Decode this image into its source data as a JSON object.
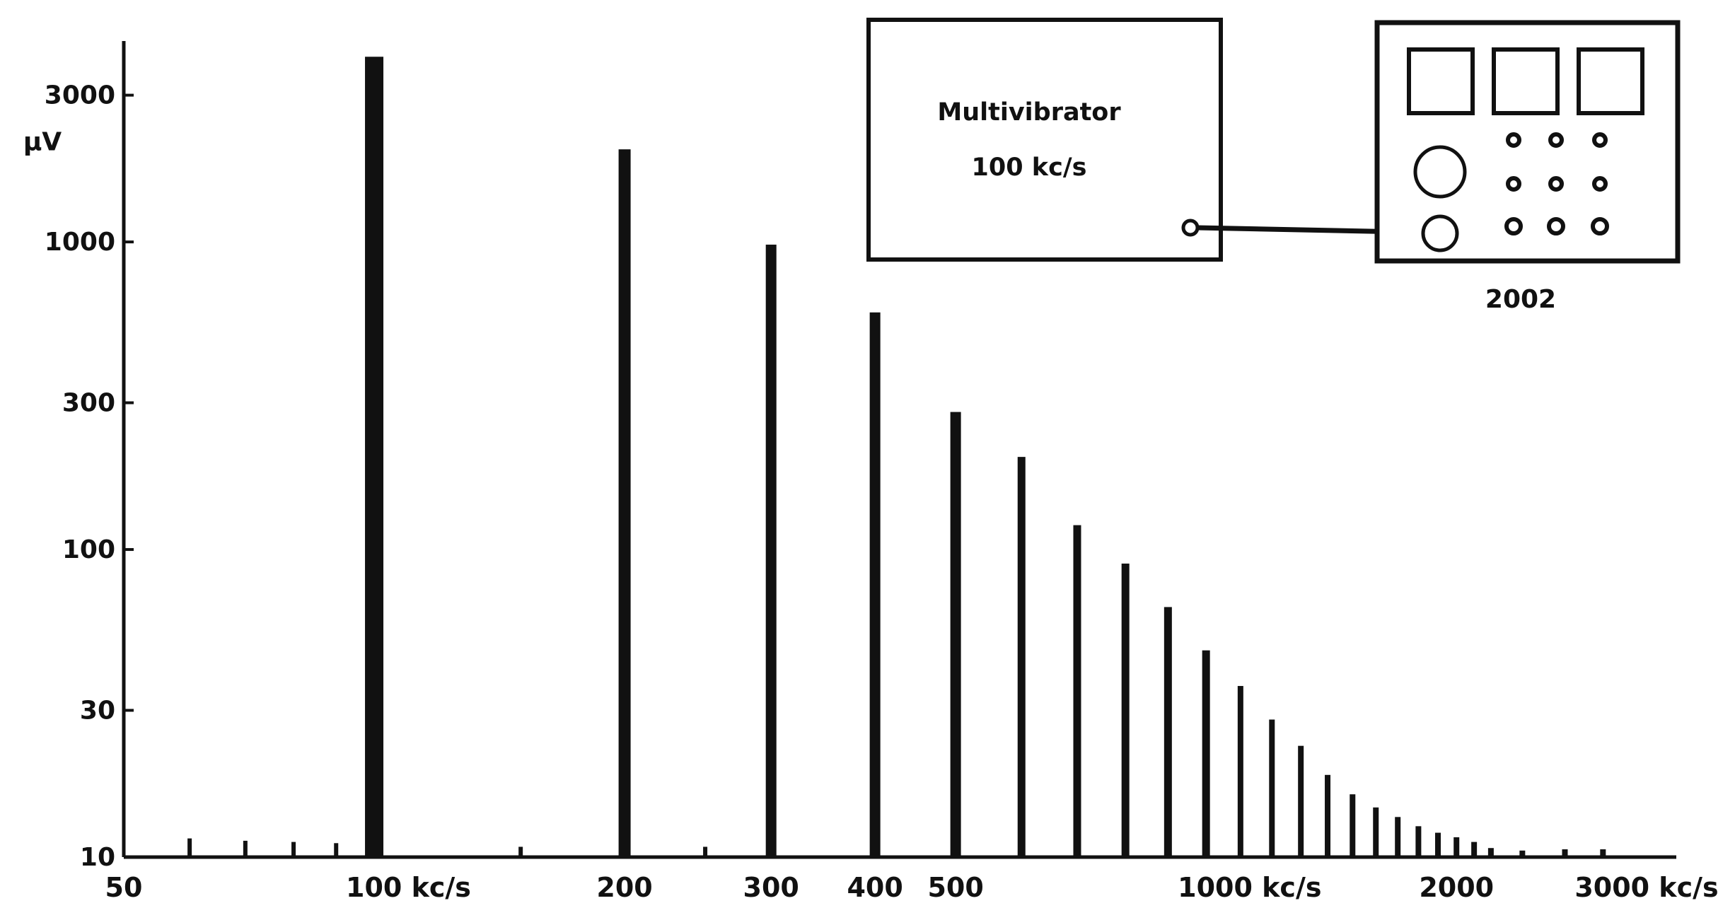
{
  "chart_data": {
    "type": "bar",
    "title": "",
    "xlabel": "",
    "ylabel": "",
    "x_scale": "log",
    "y_scale": "log",
    "xlim": [
      50,
      3300
    ],
    "ylim": [
      10,
      4500
    ],
    "x_ticks": [
      {
        "value": 50,
        "label": "50"
      },
      {
        "value": 100,
        "label": "100 kc/s"
      },
      {
        "value": 200,
        "label": "200"
      },
      {
        "value": 300,
        "label": "300"
      },
      {
        "value": 400,
        "label": "400"
      },
      {
        "value": 500,
        "label": "500"
      },
      {
        "value": 1000,
        "label": "1000 kc/s"
      },
      {
        "value": 2000,
        "label": "2000"
      },
      {
        "value": 3000,
        "label": "3000 kc/s"
      }
    ],
    "y_ticks": [
      {
        "value": 10,
        "label": "10"
      },
      {
        "value": 30,
        "label": "30"
      },
      {
        "value": 100,
        "label": "100"
      },
      {
        "value": 300,
        "label": "300"
      },
      {
        "value": 1000,
        "label": "1000"
      },
      {
        "value": 3000,
        "label": "3000"
      }
    ],
    "y_unit_label": "μV",
    "series": [
      {
        "x": [
          100,
          200,
          300,
          400,
          500,
          600,
          700,
          800,
          900,
          1000,
          1100,
          1200,
          1300,
          1400,
          1500,
          1600,
          1700,
          1800,
          1900,
          2000,
          2100,
          2200,
          2400,
          2700,
          3000
        ],
        "values": [
          4000,
          2000,
          980,
          590,
          280,
          200,
          120,
          90,
          65,
          47,
          36,
          28,
          23,
          18.5,
          16,
          14.5,
          13.5,
          12.6,
          12,
          11.6,
          11.2,
          10.7,
          10.5,
          10.6,
          10.6
        ]
      }
    ],
    "minor_spikes": {
      "x": [
        60,
        70,
        80,
        90,
        150,
        250
      ],
      "values": [
        11.5,
        11.3,
        11.2,
        11.1,
        10.8,
        10.8
      ]
    }
  },
  "diagram": {
    "generator_label_line1": "Multivibrator",
    "generator_label_line2": "100 kc/s",
    "instrument_label": "2002"
  }
}
